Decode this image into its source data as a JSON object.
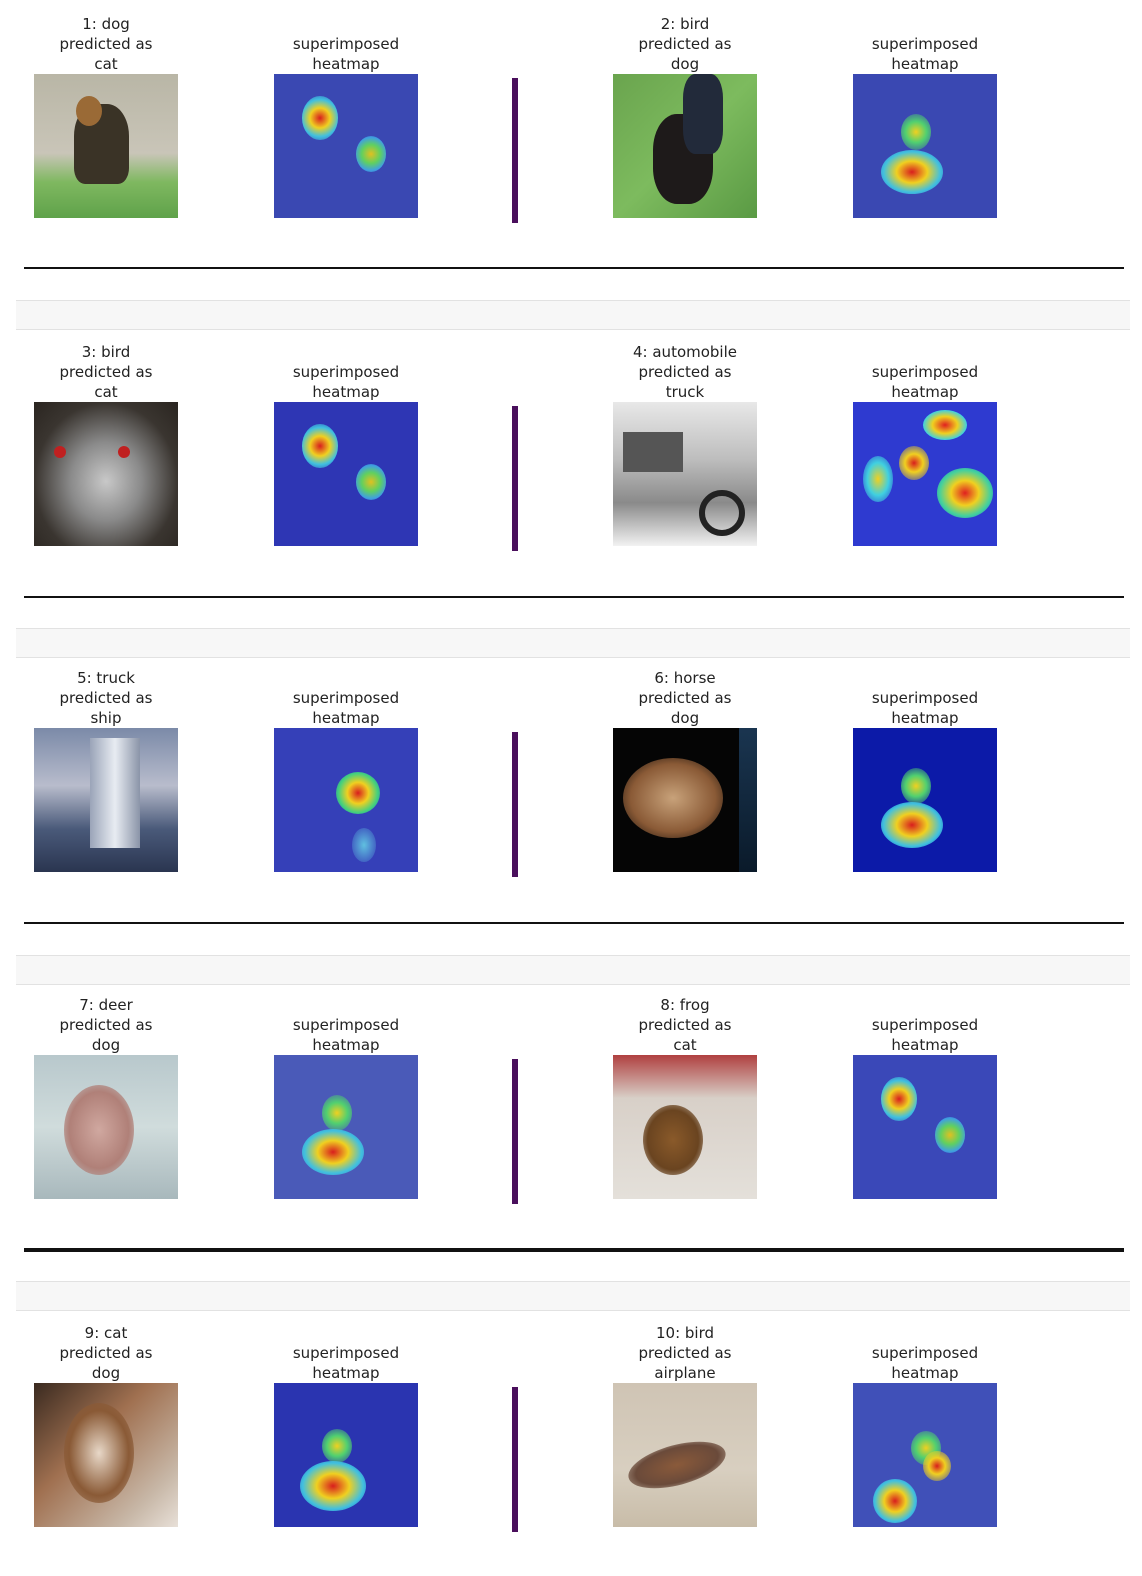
{
  "rows": [
    {
      "left": {
        "line1": "1: dog",
        "line2": "predicted as",
        "line3": "cat"
      },
      "right": {
        "line1": "2: bird",
        "line2": "predicted as",
        "line3": "dog"
      }
    },
    {
      "left": {
        "line1": "3: bird",
        "line2": "predicted as",
        "line3": "cat"
      },
      "right": {
        "line1": "4: automobile",
        "line2": "predicted as",
        "line3": "truck"
      }
    },
    {
      "left": {
        "line1": "5: truck",
        "line2": "predicted as",
        "line3": "ship"
      },
      "right": {
        "line1": "6: horse",
        "line2": "predicted as",
        "line3": "dog"
      }
    },
    {
      "left": {
        "line1": "7: deer",
        "line2": "predicted as",
        "line3": "dog"
      },
      "right": {
        "line1": "8: frog",
        "line2": "predicted as",
        "line3": "cat"
      }
    },
    {
      "left": {
        "line1": "9: cat",
        "line2": "predicted as",
        "line3": "dog"
      },
      "right": {
        "line1": "10: bird",
        "line2": "predicted as",
        "line3": "airplane"
      }
    }
  ],
  "heatmap_caption": {
    "line1": "superimposed",
    "line2": "heatmap"
  },
  "colors": {
    "divider": "#4a0f5c",
    "heatmap_base": "#3a48b2",
    "separator": "#f7f7f7"
  }
}
